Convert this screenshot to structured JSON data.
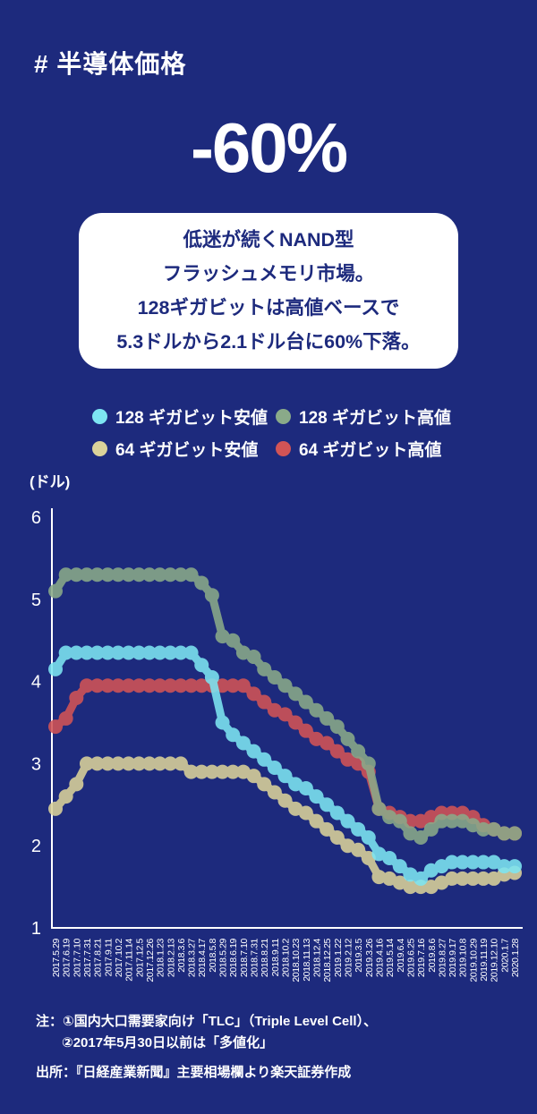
{
  "page": {
    "background_color": "#1d2a7d",
    "text_color": "#ffffff"
  },
  "header": {
    "title": "# 半導体価格"
  },
  "headline": {
    "value": "-60%"
  },
  "callout": {
    "lines": [
      "低迷が続くNAND型",
      "フラッシュメモリ市場。",
      "128ギガビットは高値ベースで",
      "5.3ドルから2.1ドル台に60%下落。"
    ]
  },
  "legend": {
    "items": [
      {
        "label": "128 ギガビット安値",
        "color": "#7de5f2"
      },
      {
        "label": "128 ギガビット高値",
        "color": "#8aaa89"
      },
      {
        "label": "64 ギガビット安値",
        "color": "#dbd29a"
      },
      {
        "label": "64 ギガビット高値",
        "color": "#d25456"
      }
    ]
  },
  "chart_data": {
    "type": "line",
    "style": "stepped-knob-line",
    "ylabel": "(ドル)",
    "xlabel": "",
    "unit": "ドル",
    "ylim": [
      1,
      6
    ],
    "yticks": [
      6,
      5,
      4,
      3,
      2,
      1
    ],
    "grid": false,
    "legend_position": "top",
    "x": [
      "2017.5.29",
      "2017.6.19",
      "2017.7.10",
      "2017.7.31",
      "2017.8.21",
      "2017.9.11",
      "2017.10.2",
      "2017.11.14",
      "2017.12.5",
      "2017.12.26",
      "2018.1.23",
      "2018.2.13",
      "2018.3.6",
      "2018.3.27",
      "2018.4.17",
      "2018.5.8",
      "2018.5.29",
      "2018.6.19",
      "2018.7.10",
      "2018.7.31",
      "2018.8.21",
      "2018.9.11",
      "2018.10.2",
      "2018.10.23",
      "2018.11.13",
      "2018.12.4",
      "2018.12.25",
      "2019.1.22",
      "2019.2.12",
      "2019.3.5",
      "2019.3.26",
      "2019.4.16",
      "2019.5.14",
      "2019.6.4",
      "2019.6.25",
      "2019.7.16",
      "2019.8.6",
      "2019.8.27",
      "2019.9.17",
      "2019.10.8",
      "2019.10.29",
      "2019.11.19",
      "2019.12.10",
      "2020.1.7",
      "2020.1.28"
    ],
    "series": [
      {
        "name": "128 ギガビット安値",
        "color": "#7de5f2",
        "values": [
          4.15,
          4.35,
          4.35,
          4.35,
          4.35,
          4.35,
          4.35,
          4.35,
          4.35,
          4.35,
          4.35,
          4.35,
          4.35,
          4.35,
          4.2,
          4.05,
          3.5,
          3.35,
          3.25,
          3.15,
          3.05,
          2.95,
          2.85,
          2.75,
          2.7,
          2.6,
          2.5,
          2.4,
          2.3,
          2.2,
          2.1,
          1.9,
          1.85,
          1.75,
          1.65,
          1.6,
          1.7,
          1.75,
          1.8,
          1.8,
          1.8,
          1.8,
          1.8,
          1.75,
          1.75
        ]
      },
      {
        "name": "128 ギガビット高値",
        "color": "#8aaa89",
        "values": [
          5.1,
          5.3,
          5.3,
          5.3,
          5.3,
          5.3,
          5.3,
          5.3,
          5.3,
          5.3,
          5.3,
          5.3,
          5.3,
          5.3,
          5.2,
          5.05,
          4.55,
          4.5,
          4.35,
          4.3,
          4.15,
          4.05,
          3.95,
          3.85,
          3.75,
          3.65,
          3.55,
          3.45,
          3.3,
          3.15,
          3.0,
          2.45,
          2.35,
          2.3,
          2.15,
          2.1,
          2.2,
          2.3,
          2.3,
          2.3,
          2.25,
          2.2,
          2.2,
          2.15,
          2.15
        ]
      },
      {
        "name": "64 ギガビット安値",
        "color": "#dbd29a",
        "values": [
          2.45,
          2.6,
          2.75,
          3.0,
          3.0,
          3.0,
          3.0,
          3.0,
          3.0,
          3.0,
          3.0,
          3.0,
          3.0,
          2.9,
          2.9,
          2.9,
          2.9,
          2.9,
          2.9,
          2.85,
          2.75,
          2.65,
          2.55,
          2.45,
          2.4,
          2.3,
          2.2,
          2.1,
          2.0,
          1.95,
          1.85,
          1.62,
          1.6,
          1.55,
          1.5,
          1.5,
          1.5,
          1.55,
          1.6,
          1.6,
          1.6,
          1.6,
          1.6,
          1.65,
          1.67
        ]
      },
      {
        "name": "64 ギガビット高値",
        "color": "#d25456",
        "values": [
          3.45,
          3.55,
          3.8,
          3.95,
          3.95,
          3.95,
          3.95,
          3.95,
          3.95,
          3.95,
          3.95,
          3.95,
          3.95,
          3.95,
          3.95,
          3.95,
          3.95,
          3.95,
          3.95,
          3.85,
          3.75,
          3.65,
          3.6,
          3.5,
          3.4,
          3.3,
          3.25,
          3.15,
          3.05,
          3.0,
          2.9,
          2.45,
          2.4,
          2.35,
          2.3,
          2.3,
          2.35,
          2.4,
          2.4,
          2.4,
          2.35,
          2.25,
          2.2,
          2.15,
          2.15
        ]
      }
    ]
  },
  "notes": {
    "line1": "注：①国内大口需要家向け「TLC」（Triple Level Cell）、",
    "line2": "②2017年5月30日以前は「多値化」",
    "source": "出所：『日経産業新聞』主要相場欄より楽天証券作成"
  }
}
